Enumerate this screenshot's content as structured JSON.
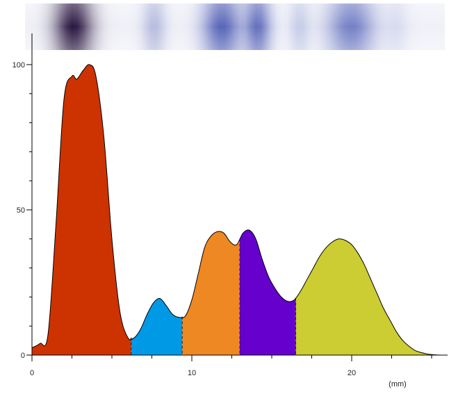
{
  "chart_data": {
    "type": "area",
    "xlabel": "(mm)",
    "ylabel": "",
    "xlim": [
      0,
      26
    ],
    "ylim": [
      0,
      100
    ],
    "x_ticks": [
      0,
      10,
      20
    ],
    "x_tick_labels": [
      "0",
      "10",
      "20"
    ],
    "x_minor_step": 2.5,
    "y_ticks": [
      0,
      50,
      100
    ],
    "y_tick_labels": [
      "0",
      "50",
      "100"
    ],
    "y_minor_step": 10,
    "grid": false,
    "profile": {
      "x": [
        0,
        0.5,
        1.0,
        1.5,
        2.0,
        2.5,
        2.8,
        3.2,
        3.6,
        4.0,
        4.5,
        5.0,
        5.5,
        6.0,
        6.4,
        6.8,
        7.2,
        7.6,
        8.0,
        8.4,
        8.8,
        9.2,
        9.6,
        10.0,
        10.4,
        10.8,
        11.2,
        11.6,
        12.0,
        12.4,
        12.8,
        13.2,
        13.6,
        14.0,
        14.4,
        14.8,
        15.2,
        15.6,
        16.0,
        16.4,
        16.8,
        17.2,
        17.6,
        18.0,
        18.4,
        18.8,
        19.2,
        19.6,
        20.0,
        20.4,
        20.8,
        21.2,
        21.6,
        22.0,
        22.4,
        22.8,
        23.2,
        23.6,
        24.0,
        24.4,
        24.8,
        25.2,
        25.6,
        26.0
      ],
      "y": [
        2.5,
        4,
        7,
        45,
        88,
        96,
        95,
        98,
        100,
        96,
        75,
        40,
        15,
        6,
        6,
        9,
        14,
        18,
        19.5,
        17,
        14,
        13,
        13.5,
        19,
        28,
        37,
        41,
        42.5,
        42,
        39,
        38,
        42,
        43,
        40,
        33,
        27,
        23,
        20,
        18.5,
        19,
        22,
        26,
        30,
        34,
        37,
        39,
        40,
        39.5,
        38,
        35,
        31,
        26,
        21,
        16,
        12,
        8,
        5,
        3,
        1.5,
        0.8,
        0.3,
        0.1,
        0,
        0
      ]
    },
    "regions": [
      {
        "x_start": 0,
        "x_end": 6.2,
        "color": "#cc3300"
      },
      {
        "x_start": 6.2,
        "x_end": 9.4,
        "color": "#0099e6"
      },
      {
        "x_start": 9.4,
        "x_end": 13.0,
        "color": "#ee8822"
      },
      {
        "x_start": 13.0,
        "x_end": 16.5,
        "color": "#6600cc"
      },
      {
        "x_start": 16.5,
        "x_end": 26.0,
        "color": "#cccc33"
      }
    ],
    "gel_lane": {
      "background": "#f0f1f8",
      "bands": [
        {
          "x": 3.0,
          "width": 2.6,
          "color": "#2a1640",
          "strength": 1.0
        },
        {
          "x": 8.0,
          "width": 1.6,
          "color": "#8f98cc",
          "strength": 0.6
        },
        {
          "x": 12.2,
          "width": 2.6,
          "color": "#4655b0",
          "strength": 0.9
        },
        {
          "x": 14.4,
          "width": 1.8,
          "color": "#4a58b2",
          "strength": 0.85
        },
        {
          "x": 17.0,
          "width": 1.4,
          "color": "#9ca8d8",
          "strength": 0.5
        },
        {
          "x": 20.2,
          "width": 3.2,
          "color": "#5563b8",
          "strength": 0.8
        },
        {
          "x": 23.0,
          "width": 1.6,
          "color": "#b4bde2",
          "strength": 0.4
        }
      ]
    }
  }
}
